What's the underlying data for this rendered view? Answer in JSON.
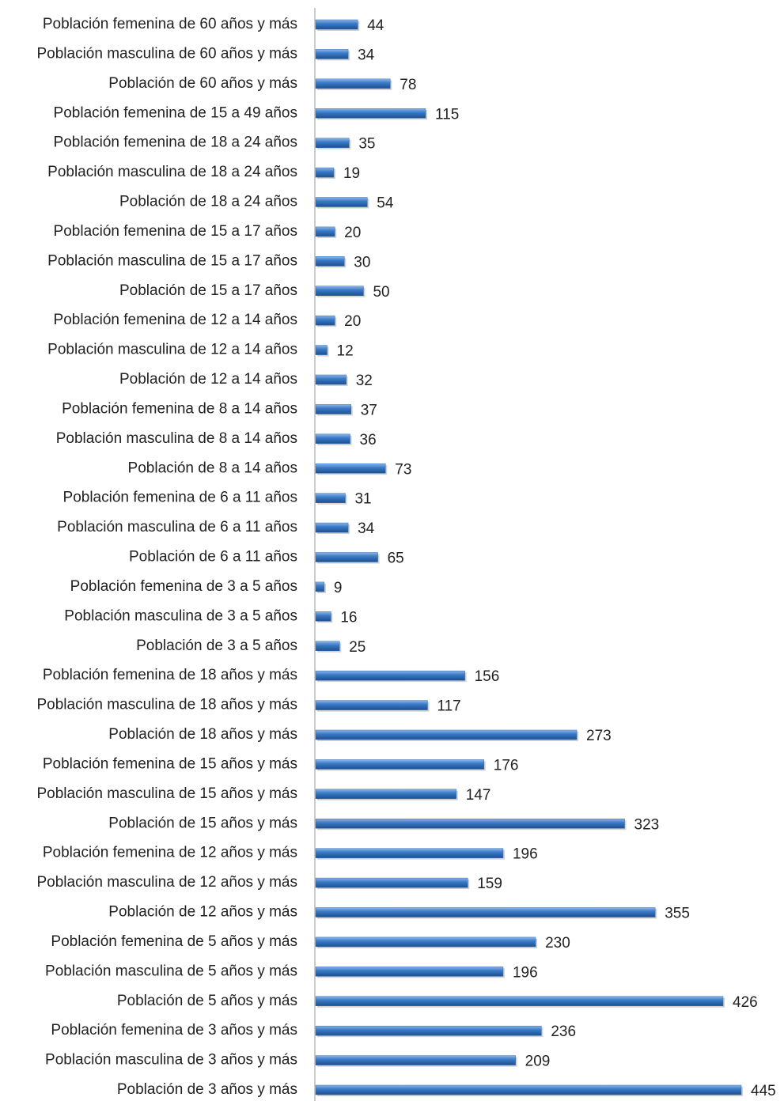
{
  "chart_data": {
    "type": "barh",
    "color": "#2f6fb7",
    "categories": [
      "Población femenina de 60 años y más",
      "Población masculina de 60 años y más",
      "Población de 60 años y más",
      "Población femenina de 15 a 49 años",
      "Población femenina de 18 a 24 años",
      "Población masculina de 18 a 24 años",
      "Población de 18 a 24 años",
      "Población femenina de 15 a 17 años",
      "Población masculina de 15 a 17 años",
      "Población de 15 a 17 años",
      "Población femenina de 12 a 14 años",
      "Población masculina de 12 a 14 años",
      "Población de 12 a 14 años",
      "Población femenina de 8 a 14 años",
      "Población masculina de 8 a 14 años",
      "Población de 8 a 14 años",
      "Población femenina de 6 a 11 años",
      "Población masculina de 6 a 11 años",
      "Población de 6 a 11 años",
      "Población femenina de 3 a 5 años",
      "Población masculina de 3 a 5 años",
      "Población de 3 a 5 años",
      "Población femenina de 18 años y más",
      "Población masculina de 18 años y más",
      "Población de 18 años y más",
      "Población femenina de 15 años y más",
      "Población masculina de 15 años y más",
      "Población de 15 años y más",
      "Población femenina de 12 años y más",
      "Población masculina de 12 años y más",
      "Población de 12 años y más",
      "Población femenina de 5 años y más",
      "Población masculina de 5 años y más",
      "Población de 5 años y más",
      "Población femenina de 3 años y más",
      "Población masculina de 3 años y más",
      "Población de 3 años y más"
    ],
    "values": [
      44,
      34,
      78,
      115,
      35,
      19,
      54,
      20,
      30,
      50,
      20,
      12,
      32,
      37,
      36,
      73,
      31,
      34,
      65,
      9,
      16,
      25,
      156,
      117,
      273,
      176,
      147,
      323,
      196,
      159,
      355,
      230,
      196,
      426,
      236,
      209,
      445
    ]
  }
}
